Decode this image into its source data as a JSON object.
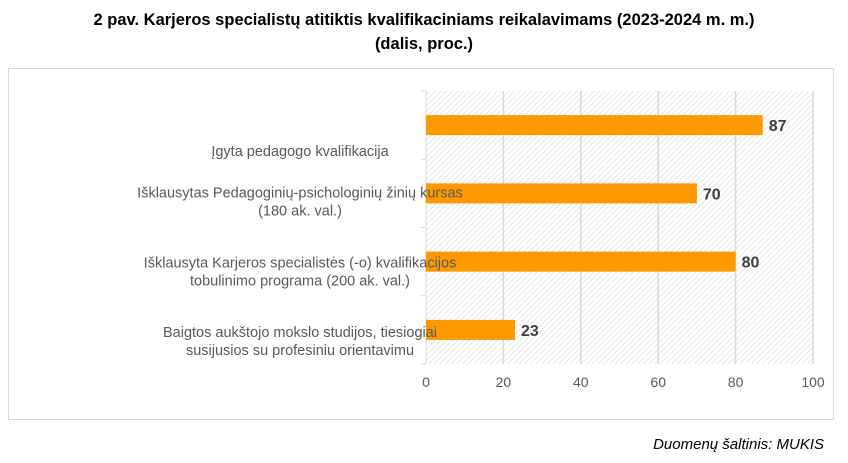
{
  "chart_data": {
    "type": "bar",
    "orientation": "horizontal",
    "title_line1": "2 pav. Karjeros specialistų atitiktis kvalifikaciniams reikalavimams (2023-2024 m. m.)",
    "title_line2": "(dalis, proc.)",
    "categories": [
      [
        "Įgyta pedagogo kvalifikacija"
      ],
      [
        "Išklausytas Pedagoginių-psichologinių žinių kursas",
        "(180 ak. val.)"
      ],
      [
        "Išklausyta Karjeros specialistės (-o) kvalifikacijos",
        "tobulinimo programa (200 ak. val.)"
      ],
      [
        "Baigtos aukštojo mokslo studijos, tiesiogiai",
        "susijusios su profesiniu orientavimu"
      ]
    ],
    "values": [
      87,
      70,
      80,
      23
    ],
    "xlim": [
      0,
      100
    ],
    "xticks": [
      0,
      20,
      40,
      60,
      80,
      100
    ],
    "grid": true,
    "bar_color": "#ff9900",
    "source": "Duomenų šaltinis: MUKIS"
  }
}
